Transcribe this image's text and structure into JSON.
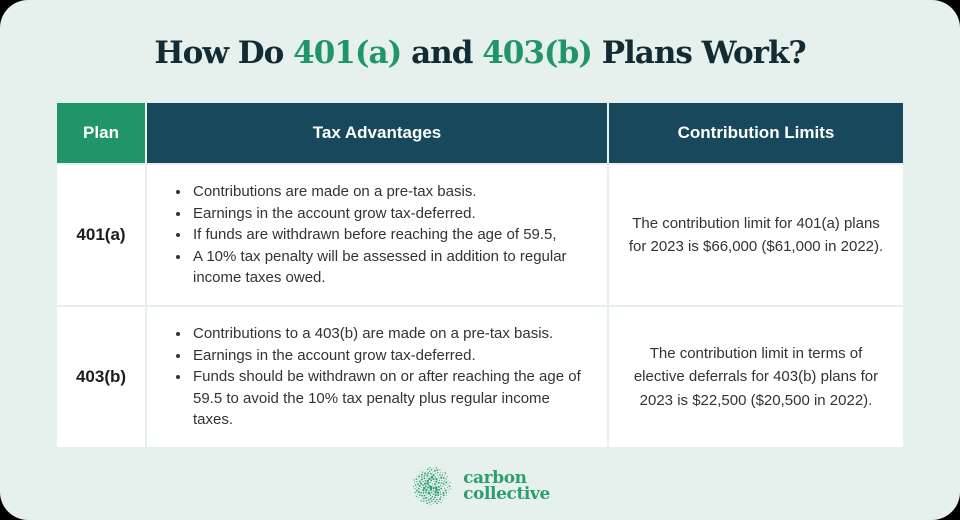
{
  "title": {
    "parts": [
      {
        "text": "How Do ",
        "color": "dark"
      },
      {
        "text": "401(a)",
        "color": "green"
      },
      {
        "text": " and ",
        "color": "dark"
      },
      {
        "text": "403(b)",
        "color": "green"
      },
      {
        "text": " Plans Work?",
        "color": "dark"
      }
    ]
  },
  "table": {
    "headers": [
      "Plan",
      "Tax Advantages",
      "Contribution Limits"
    ],
    "rows": [
      {
        "plan": "401(a)",
        "tax_advantages": [
          "Contributions are made on a pre-tax basis.",
          "Earnings in the account grow tax-deferred.",
          "If funds are withdrawn before reaching the age of 59.5,",
          "A 10% tax penalty will be assessed in addition to regular income taxes owed."
        ],
        "contribution_limits": "The contribution limit for 401(a) plans for 2023 is $66,000 ($61,000 in 2022)."
      },
      {
        "plan": "403(b)",
        "tax_advantages": [
          "Contributions to a 403(b) are made on a pre-tax basis.",
          "Earnings in the account grow tax-deferred.",
          "Funds should be withdrawn on or after reaching the age of 59.5 to avoid the 10% tax penalty plus regular income taxes."
        ],
        "contribution_limits": "The contribution limit in terms of elective deferrals for 403(b) plans for 2023 is $22,500 ($20,500 in 2022)."
      }
    ]
  },
  "footer": {
    "brand_line1": "carbon",
    "brand_line2": "collective"
  },
  "colors": {
    "accent_green": "#1f9568",
    "header_teal": "#17485c",
    "card_bg": "#e6f1ed",
    "title_dark": "#132b33",
    "logo_green": "#2f9e6f",
    "cell_bg": "#ffffff",
    "body_text": "#333333"
  }
}
